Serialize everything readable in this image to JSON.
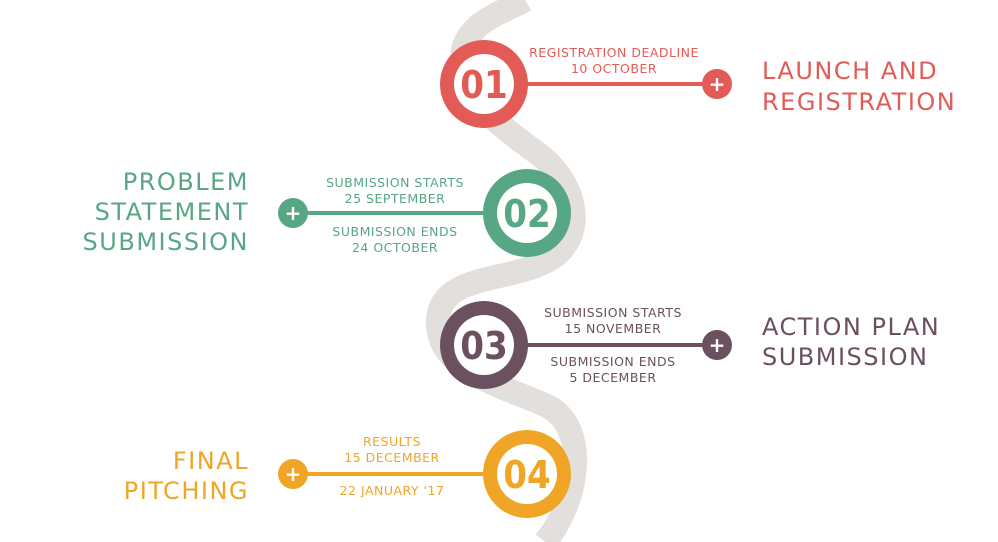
{
  "colors": {
    "path": "#e3dfdc",
    "red": "#e35b56",
    "green": "#57a684",
    "purple": "#6b5060",
    "orange": "#f0a526"
  },
  "stages": [
    {
      "number": "01",
      "color_key": "red",
      "title_lines": [
        "LAUNCH AND",
        "REGISTRATION"
      ],
      "date_top": [
        "REGISTRATION DEADLINE",
        "10 OCTOBER"
      ],
      "date_bottom": []
    },
    {
      "number": "02",
      "color_key": "green",
      "title_lines": [
        "PROBLEM",
        "STATEMENT",
        "SUBMISSION"
      ],
      "date_top": [
        "SUBMISSION STARTS",
        "25 SEPTEMBER"
      ],
      "date_bottom": [
        "SUBMISSION ENDS",
        "24 OCTOBER"
      ]
    },
    {
      "number": "03",
      "color_key": "purple",
      "title_lines": [
        "ACTION PLAN",
        "SUBMISSION"
      ],
      "date_top": [
        "SUBMISSION STARTS",
        "15 NOVEMBER"
      ],
      "date_bottom": [
        "SUBMISSION ENDS",
        "5 DECEMBER"
      ]
    },
    {
      "number": "04",
      "color_key": "orange",
      "title_lines": [
        "FINAL",
        "PITCHING"
      ],
      "date_top": [
        "RESULTS",
        "15 DECEMBER"
      ],
      "date_bottom": [
        "22 JANUARY '17"
      ]
    }
  ]
}
